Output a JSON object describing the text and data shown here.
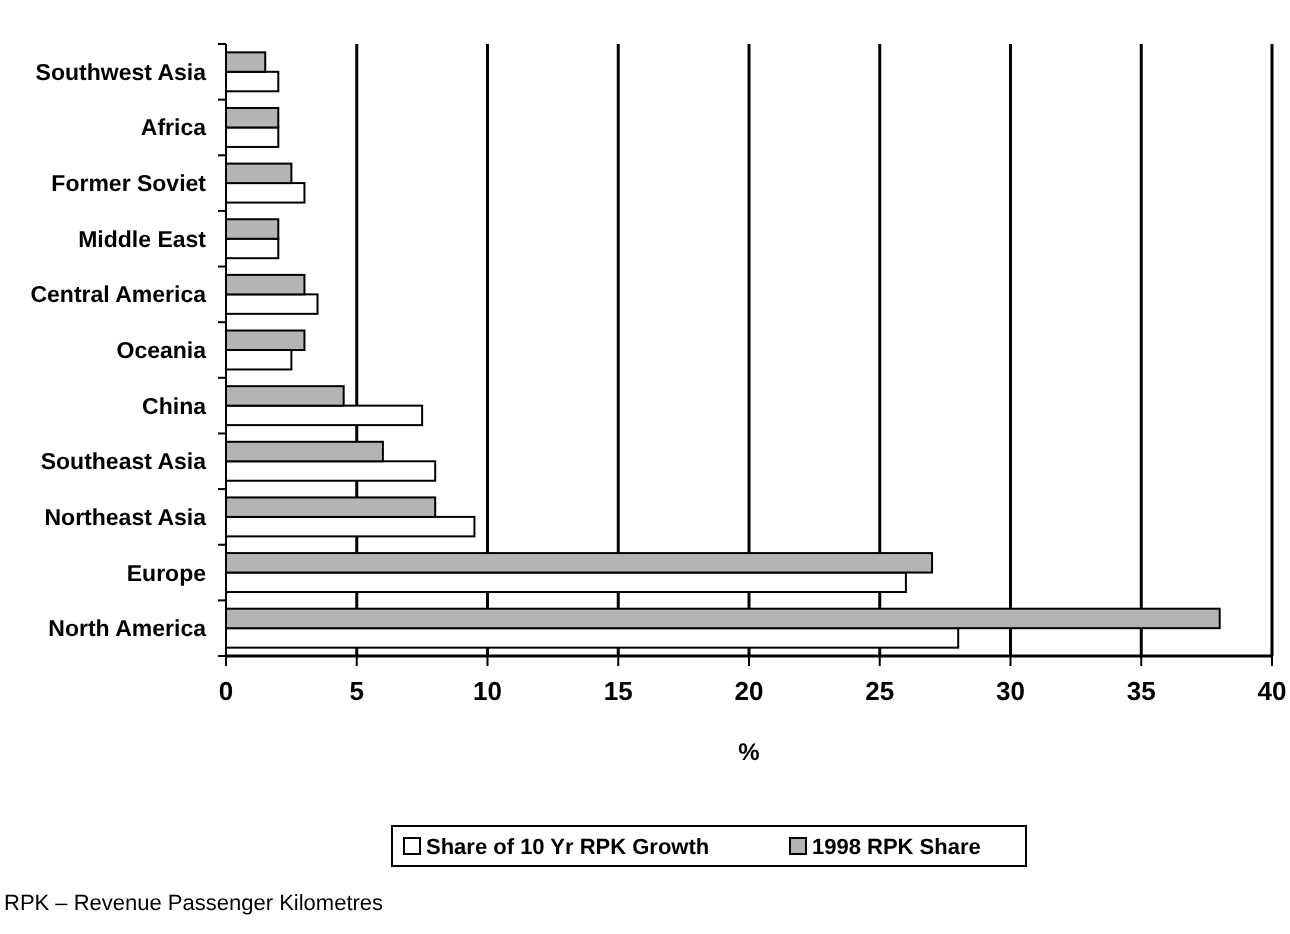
{
  "chart_data": {
    "type": "bar",
    "orientation": "horizontal",
    "xlabel": "%",
    "categories": [
      "Southwest Asia",
      "Africa",
      "Former Soviet",
      "Middle East",
      "Central America",
      "Oceania",
      "China",
      "Southeast Asia",
      "Northeast Asia",
      "Europe",
      "North America"
    ],
    "series": [
      {
        "name": "Share of 10 Yr RPK Growth",
        "color": "#ffffff",
        "values": [
          2,
          2,
          3,
          2,
          3.5,
          2.5,
          7.5,
          8,
          9.5,
          26,
          28
        ]
      },
      {
        "name": "1998 RPK Share",
        "color": "#b4b4b4",
        "values": [
          1.5,
          2,
          2.5,
          2,
          3,
          3,
          4.5,
          6,
          8,
          27,
          38
        ]
      }
    ],
    "xlim": [
      0,
      40
    ],
    "xticks": [
      0,
      5,
      10,
      15,
      20,
      25,
      30,
      35,
      40
    ],
    "grid": "x",
    "legend": "bottom",
    "annotations": [
      "RPK – Revenue Passenger Kilometres"
    ]
  }
}
